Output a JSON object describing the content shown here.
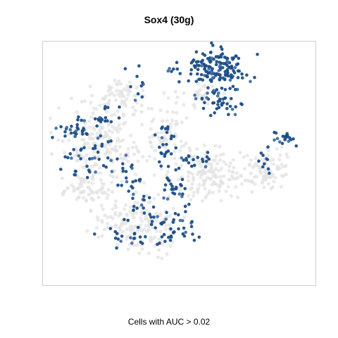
{
  "title": "Sox4 (30g)",
  "caption": "Cells with AUC > 0.02",
  "colors": {
    "high": "#1c4e86",
    "mid": "#3f6ea8",
    "low": "#e3e3e3",
    "frame": "#cfcfcf"
  },
  "chart_data": {
    "type": "scatter",
    "title": "Sox4 (30g)",
    "xlabel": "",
    "ylabel": "",
    "xlim": [
      0,
      100
    ],
    "ylim": [
      0,
      100
    ],
    "grid": false,
    "legend": "none",
    "series": [
      {
        "color": "#1c4e86",
        "clusters": [
          {
            "cx": 64,
            "cy": 89,
            "rx": 11,
            "ry": 7,
            "n": 150
          },
          {
            "cx": 64,
            "cy": 76,
            "rx": 7,
            "ry": 5,
            "n": 45
          },
          {
            "cx": 12,
            "cy": 64,
            "rx": 7,
            "ry": 5,
            "n": 30
          },
          {
            "cx": 18,
            "cy": 54,
            "rx": 8,
            "ry": 9,
            "n": 40
          },
          {
            "cx": 25,
            "cy": 70,
            "rx": 6,
            "ry": 4,
            "n": 15
          },
          {
            "cx": 32,
            "cy": 45,
            "rx": 5,
            "ry": 6,
            "n": 20
          },
          {
            "cx": 45,
            "cy": 58,
            "rx": 3,
            "ry": 9,
            "n": 25
          },
          {
            "cx": 55,
            "cy": 52,
            "rx": 6,
            "ry": 4,
            "n": 20
          },
          {
            "cx": 48,
            "cy": 40,
            "rx": 5,
            "ry": 6,
            "n": 20
          },
          {
            "cx": 38,
            "cy": 30,
            "rx": 10,
            "ry": 8,
            "n": 40
          },
          {
            "cx": 50,
            "cy": 22,
            "rx": 6,
            "ry": 5,
            "n": 25
          },
          {
            "cx": 30,
            "cy": 20,
            "rx": 8,
            "ry": 4,
            "n": 20
          },
          {
            "cx": 88,
            "cy": 60,
            "rx": 5,
            "ry": 3,
            "n": 20
          },
          {
            "cx": 82,
            "cy": 50,
            "rx": 3,
            "ry": 5,
            "n": 10
          },
          {
            "cx": 34,
            "cy": 82,
            "rx": 4,
            "ry": 6,
            "n": 10
          },
          {
            "cx": 48,
            "cy": 90,
            "rx": 3,
            "ry": 3,
            "n": 6
          }
        ]
      },
      {
        "color": "#e3e3e3",
        "clusters": [
          {
            "cx": 22,
            "cy": 58,
            "rx": 15,
            "ry": 14,
            "n": 200
          },
          {
            "cx": 35,
            "cy": 25,
            "rx": 13,
            "ry": 10,
            "n": 170
          },
          {
            "cx": 60,
            "cy": 45,
            "rx": 12,
            "ry": 10,
            "n": 150
          },
          {
            "cx": 82,
            "cy": 47,
            "rx": 7,
            "ry": 8,
            "n": 80
          },
          {
            "cx": 46,
            "cy": 62,
            "rx": 6,
            "ry": 12,
            "n": 60
          },
          {
            "cx": 16,
            "cy": 40,
            "rx": 7,
            "ry": 5,
            "n": 60
          },
          {
            "cx": 28,
            "cy": 78,
            "rx": 9,
            "ry": 6,
            "n": 60
          },
          {
            "cx": 58,
            "cy": 78,
            "rx": 8,
            "ry": 5,
            "n": 30
          }
        ]
      }
    ]
  }
}
